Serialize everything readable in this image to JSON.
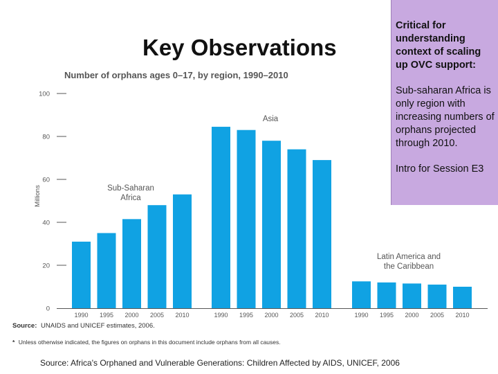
{
  "slide": {
    "title": "Key Observations",
    "note": {
      "heading": "Critical for understanding context of scaling up OVC support:",
      "body": "Sub-saharan Africa is only region with increasing numbers of orphans projected through 2010.",
      "session": "Intro for Session E3"
    },
    "footer": "Source: Africa's Orphaned and Vulnerable Generations: Children Affected by AIDS, UNICEF, 2006"
  },
  "colors": {
    "bar": "#10a2e3",
    "axis": "#555555",
    "note_bg": "#c8a9e0",
    "label": "#555555"
  },
  "chart_data": {
    "type": "bar",
    "title": "Number of orphans ages 0–17, by region, 1990–2010",
    "ylabel": "Millions",
    "ylim": [
      0,
      100
    ],
    "yticks": [
      0,
      20,
      40,
      60,
      80,
      100
    ],
    "series": [
      {
        "name": "Sub-Saharan Africa",
        "label_lines": [
          "Sub-Saharan",
          "Africa"
        ],
        "categories": [
          "1990",
          "1995",
          "2000",
          "2005",
          "2010"
        ],
        "values": [
          31,
          35,
          41.5,
          48,
          53
        ]
      },
      {
        "name": "Asia",
        "label_lines": [
          "Asia"
        ],
        "categories": [
          "1990",
          "1995",
          "2000",
          "2005",
          "2010"
        ],
        "values": [
          84.5,
          83,
          78,
          74,
          69
        ]
      },
      {
        "name": "Latin America and the Caribbean",
        "label_lines": [
          "Latin America and",
          "the Caribbean"
        ],
        "categories": [
          "1990",
          "1995",
          "2000",
          "2005",
          "2010"
        ],
        "values": [
          12.5,
          12,
          11.5,
          11,
          10
        ]
      }
    ],
    "source_label": "Source:",
    "source_text": "UNAIDS and UNICEF estimates, 2006.",
    "footnote_mark": "*",
    "footnote": "Unless otherwise indicated, the figures on orphans in this document include orphans from all causes."
  }
}
